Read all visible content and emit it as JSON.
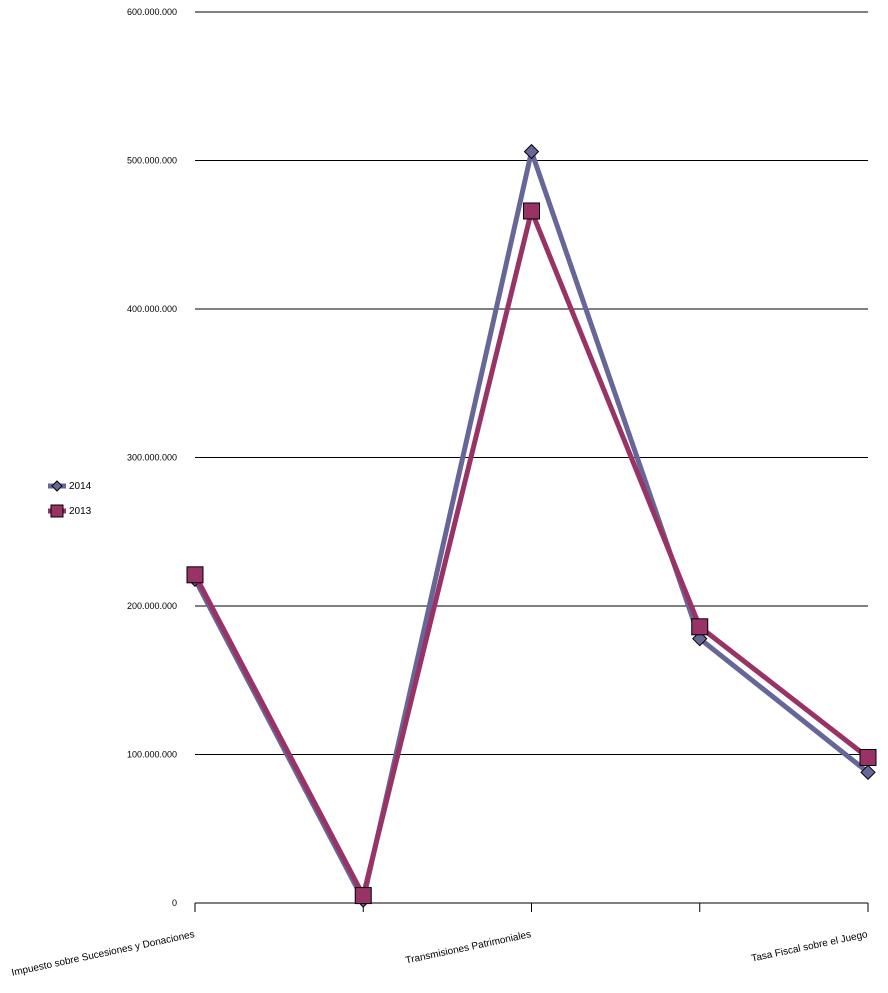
{
  "chart_data": {
    "type": "line",
    "categories": [
      "Impuesto sobre Sucesiones y Donaciones",
      "",
      "Transmisiones Patrimoniales",
      "",
      "Tasa Fiscal sobre el Juego"
    ],
    "y_tick_labels": [
      "0",
      "100.000.000",
      "200.000.000",
      "300.000.000",
      "400.000.000",
      "500.000.000",
      "600.000.000"
    ],
    "ylim": [
      0,
      600000000
    ],
    "grid": true,
    "legend_position": "left",
    "series": [
      {
        "name": "2014",
        "color": "#676699",
        "marker": "diamond",
        "values": [
          218000000,
          2000000,
          506000000,
          178000000,
          88000000
        ]
      },
      {
        "name": "2013",
        "color": "#993366",
        "marker": "square",
        "values": [
          221000000,
          5000000,
          466000000,
          186000000,
          98000000
        ]
      }
    ]
  }
}
